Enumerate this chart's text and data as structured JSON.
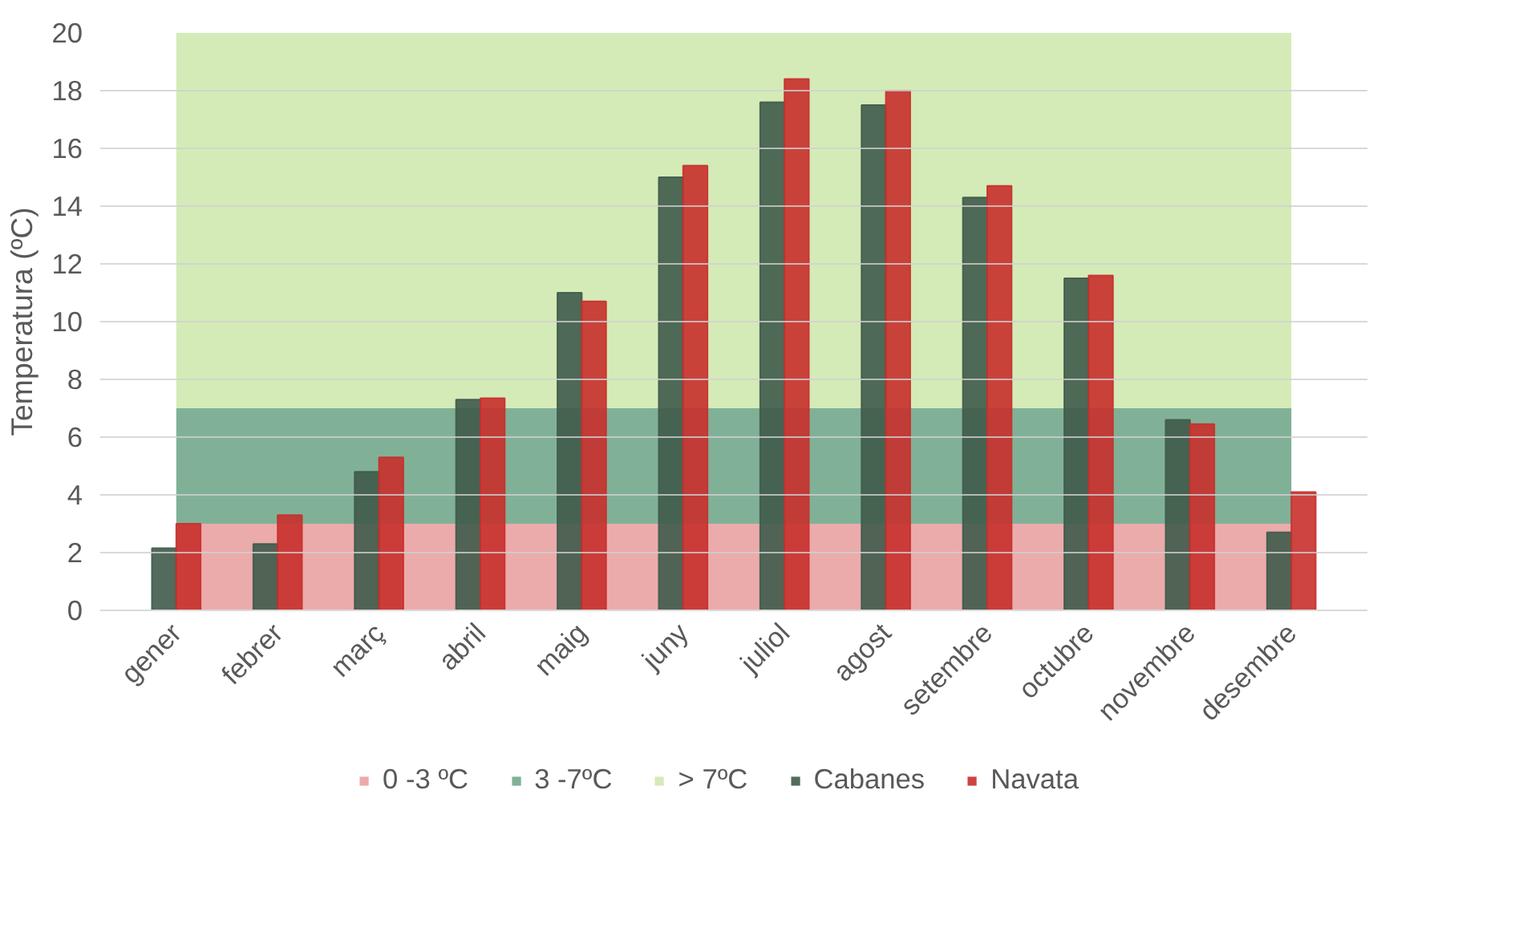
{
  "chart_data": {
    "type": "bar",
    "ylabel": "Temperatura (ºC)",
    "categories": [
      "gener",
      "febrer",
      "març",
      "abril",
      "maig",
      "juny",
      "juliol",
      "agost",
      "setembre",
      "octubre",
      "novembre",
      "desembre"
    ],
    "series": [
      {
        "name": "Cabanes",
        "color": "#3f5b4a",
        "values": [
          2.15,
          2.3,
          4.8,
          7.3,
          11.0,
          15.0,
          17.6,
          17.5,
          14.3,
          11.5,
          6.6,
          2.7
        ]
      },
      {
        "name": "Navata",
        "color": "#c8302c",
        "values": [
          3.0,
          3.3,
          5.3,
          7.35,
          10.7,
          15.4,
          18.4,
          18.0,
          14.7,
          11.6,
          6.45,
          4.1
        ]
      }
    ],
    "bands": [
      {
        "axis": "y",
        "from": 0,
        "to": 3,
        "label": "0 -3 ºC",
        "color": "#ebabab"
      },
      {
        "axis": "y",
        "from": 3,
        "to": 7,
        "label": "3 -7ºC",
        "color": "#80b197"
      },
      {
        "axis": "y",
        "from": 7,
        "to": 20,
        "label": "> 7ºC",
        "color": "#d4ebb8"
      }
    ],
    "ylim": [
      0,
      20
    ],
    "yticks": [
      0,
      2,
      4,
      6,
      8,
      10,
      12,
      14,
      16,
      18,
      20
    ],
    "grid": "y",
    "legend": "bottom"
  }
}
